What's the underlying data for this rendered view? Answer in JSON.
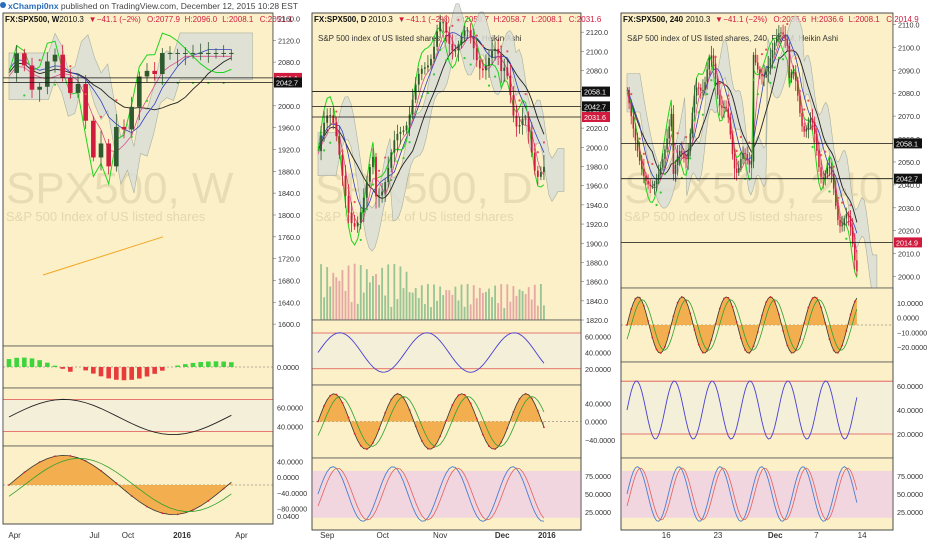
{
  "header": {
    "author": "xChampi0nx",
    "published": "published on TradingView.com, December 12, 2015 10:28 EST"
  },
  "colors": {
    "price_bg": "#fbf0c7",
    "rsi_band": "#f3efd9",
    "stoch_band": "#f2d6df",
    "bull": "#2f5a2f",
    "bear": "#d01b3e",
    "kijun": "#1fd41f",
    "tenkan": "#d9508f",
    "sar": "#35c935",
    "sar_red": "#e8505b",
    "cloud": "#dcdfd8",
    "ma_black": "#222222",
    "ma_orange": "#f3a623",
    "ma_blue": "#3040c0",
    "rsi_line": "#4a3fd4",
    "macd_fill": "#f1a33a",
    "stoch_k": "#4a7fd0",
    "stoch_d": "#e06060"
  },
  "chart_data": [
    {
      "id": "weekly",
      "type": "candlestick",
      "header": {
        "sym": "FX:SPX500, W",
        "last": "2010.3",
        "chg": "−41.1 (−2%)",
        "o": "O:2077.9",
        "h": "H:2096.0",
        "l": "L:2008.1",
        "c": "C:2051.1"
      },
      "watermark": "SPX500, W",
      "watermark_sub": "S&P 500 Index of US listed shares",
      "price_axis": {
        "min": 1560,
        "max": 2170,
        "ticks": [
          "2160.0",
          "2120.0",
          "2080.0",
          "2040.0",
          "2000.0",
          "1960.0",
          "1920.0",
          "1880.0",
          "1840.0",
          "1800.0",
          "1760.0",
          "1720.0",
          "1680.0",
          "1640.0",
          "1600.0"
        ]
      },
      "price_labels": [
        {
          "text": "2051.1",
          "value": 2051.1,
          "color": "#d01b3e"
        },
        {
          "text": "2042.7",
          "value": 2042.7,
          "color": "#111111"
        }
      ],
      "x_labels": [
        "Apr",
        "Jul",
        "Oct",
        "2016",
        "Apr"
      ],
      "indicators": [
        {
          "name": "histogram",
          "ticks": [
            "0.0000"
          ]
        },
        {
          "name": "rsi",
          "ticks": [
            "60.0000",
            "40.0000"
          ]
        },
        {
          "name": "macd",
          "ticks": [
            "40.0000",
            "0.0000",
            "−40.0000",
            "−80.0000"
          ]
        }
      ],
      "bottom_tick": "0.0400"
    },
    {
      "id": "daily",
      "type": "candlestick",
      "header": {
        "sym": "FX:SPX500, D",
        "last": "2010.3",
        "chg": "−41.1 (−2%)",
        "o": "O:2058.7",
        "h": "H:2058.7",
        "l": "L:2008.1",
        "c": "C:2031.6"
      },
      "title": "S&P 500 index of US listed shares, D, FXCM, Heikin Ashi",
      "watermark": "SPX500, D",
      "watermark_sub": "S&P 500 index of US listed shares",
      "price_axis": {
        "min": 1820,
        "max": 2140,
        "ticks": [
          "2120.0",
          "2100.0",
          "2080.0",
          "2060.0",
          "2040.0",
          "2020.0",
          "2000.0",
          "1980.0",
          "1960.0",
          "1940.0",
          "1920.0",
          "1900.0",
          "1880.0",
          "1860.0",
          "1840.0",
          "1820.0"
        ]
      },
      "price_labels": [
        {
          "text": "2058.1",
          "value": 2058.1,
          "color": "#111111"
        },
        {
          "text": "2042.7",
          "value": 2042.7,
          "color": "#111111"
        },
        {
          "text": "2031.6",
          "value": 2031.6,
          "color": "#d01b3e"
        }
      ],
      "x_labels": [
        "Sep",
        "Oct",
        "Nov",
        "Dec",
        "2016"
      ],
      "indicators": [
        {
          "name": "rsi",
          "ticks": [
            "60.0000",
            "40.0000",
            "20.0000"
          ]
        },
        {
          "name": "macd",
          "ticks": [
            "40.0000",
            "0.0000",
            "−40.0000"
          ]
        },
        {
          "name": "stoch",
          "ticks": [
            "75.0000",
            "50.0000",
            "25.0000"
          ]
        }
      ]
    },
    {
      "id": "h4",
      "type": "candlestick",
      "header": {
        "sym": "FX:SPX500, 240",
        "last": "2010.3",
        "chg": "−41.1 (−2%)",
        "o": "O:2036.6",
        "h": "H:2036.6",
        "l": "L:2008.1",
        "c": "C:2014.9"
      },
      "title": "S&P 500 index of US listed shares, 240, FXCM, Heikin Ashi",
      "watermark": "SPX500, 240",
      "watermark_sub": "S&P 500 index of US listed shares",
      "price_axis": {
        "min": 1995,
        "max": 2115,
        "ticks": [
          "2110.0",
          "2100.0",
          "2090.0",
          "2080.0",
          "2070.0",
          "2060.0",
          "2050.0",
          "2040.0",
          "2030.0",
          "2020.0",
          "2010.0",
          "2000.0"
        ]
      },
      "price_labels": [
        {
          "text": "2058.1",
          "value": 2058.1,
          "color": "#111111"
        },
        {
          "text": "2042.7",
          "value": 2042.7,
          "color": "#111111"
        },
        {
          "text": "2014.9",
          "value": 2014.9,
          "color": "#d01b3e"
        }
      ],
      "x_labels": [
        "16",
        "23",
        "Dec",
        "7",
        "14"
      ],
      "indicators": [
        {
          "name": "macd",
          "ticks": [
            "10.0000",
            "0.0000",
            "−10.0000",
            "−20.0000"
          ]
        },
        {
          "name": "rsi",
          "ticks": [
            "60.0000",
            "40.0000",
            "20.0000"
          ]
        },
        {
          "name": "stoch",
          "ticks": [
            "75.0000",
            "50.0000",
            "25.0000"
          ]
        }
      ]
    }
  ]
}
